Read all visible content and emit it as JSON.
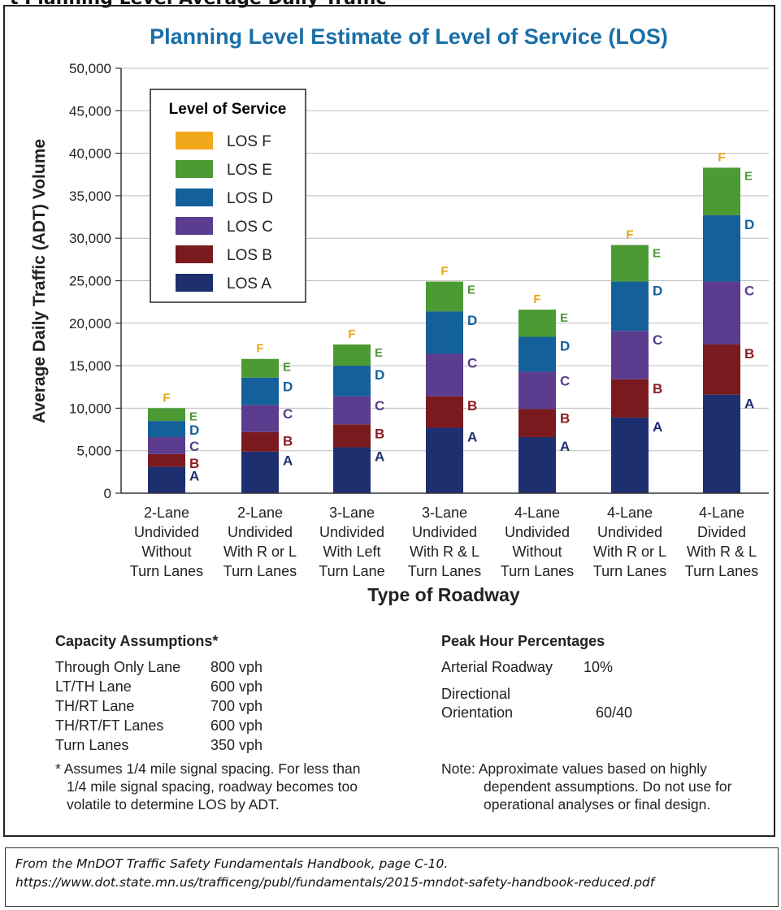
{
  "chart_data": {
    "type": "bar",
    "stacked": true,
    "title": "Planning Level Estimate of Level of Service (LOS)",
    "xlabel": "Type of Roadway",
    "ylabel": "Average Daily Traffic (ADT) Volume",
    "ylim": [
      0,
      50000
    ],
    "yticks": [
      0,
      5000,
      10000,
      15000,
      20000,
      25000,
      30000,
      35000,
      40000,
      45000,
      50000
    ],
    "ytick_labels": [
      "0",
      "5,000",
      "10,000",
      "15,000",
      "20,000",
      "25,000",
      "30,000",
      "35,000",
      "40,000",
      "45,000",
      "50,000"
    ],
    "grid": true,
    "categories": [
      [
        "2-Lane",
        "Undivided",
        "Without",
        "Turn Lanes"
      ],
      [
        "2-Lane",
        "Undivided",
        "With R or L",
        "Turn Lanes"
      ],
      [
        "3-Lane",
        "Undivided",
        "With Left",
        "Turn Lane"
      ],
      [
        "3-Lane",
        "Undivided",
        "With R & L",
        "Turn Lanes"
      ],
      [
        "4-Lane",
        "Undivided",
        "Without",
        "Turn Lanes"
      ],
      [
        "4-Lane",
        "Undivided",
        "With R or L",
        "Turn Lanes"
      ],
      [
        "4-Lane",
        "Divided",
        "With R & L",
        "Turn Lanes"
      ]
    ],
    "legend": {
      "title": "Level of Service",
      "position": "top-left",
      "order": [
        "LOS F",
        "LOS E",
        "LOS D",
        "LOS C",
        "LOS B",
        "LOS A"
      ]
    },
    "series": [
      {
        "name": "LOS A",
        "letter": "A",
        "color": "#1d2f6f",
        "label_color": "#1d2f6f",
        "top_values": [
          3100,
          4900,
          5400,
          7700,
          6600,
          8900,
          11600
        ]
      },
      {
        "name": "LOS B",
        "letter": "B",
        "color": "#7a1a1e",
        "label_color": "#8e1c22",
        "top_values": [
          4600,
          7200,
          8100,
          11400,
          9900,
          13400,
          17500
        ]
      },
      {
        "name": "LOS C",
        "letter": "C",
        "color": "#5b3c8e",
        "label_color": "#5b3c8e",
        "top_values": [
          6600,
          10400,
          11400,
          16400,
          14300,
          19100,
          24900
        ]
      },
      {
        "name": "LOS D",
        "letter": "D",
        "color": "#14609a",
        "label_color": "#14609a",
        "top_values": [
          8500,
          13600,
          15000,
          21400,
          18400,
          24900,
          32700
        ]
      },
      {
        "name": "LOS E",
        "letter": "E",
        "color": "#4c9a34",
        "label_color": "#4c9a34",
        "top_values": [
          10000,
          15800,
          17500,
          24900,
          21600,
          29200,
          38300
        ]
      },
      {
        "name": "LOS F",
        "letter": "F",
        "color": "#f2a81d",
        "label_color": "#e9a417",
        "top_values": [
          null,
          null,
          null,
          null,
          null,
          null,
          null
        ]
      }
    ],
    "text_color": "#222222",
    "title_color": "#1a6fa8"
  },
  "capacity": {
    "heading": "Capacity Assumptions*",
    "rows": [
      {
        "label": "Through Only Lane",
        "value": "800 vph"
      },
      {
        "label": "LT/TH Lane",
        "value": "600 vph"
      },
      {
        "label": "TH/RT Lane",
        "value": "700 vph"
      },
      {
        "label": "TH/RT/FT Lanes",
        "value": "600 vph"
      },
      {
        "label": "Turn Lanes",
        "value": "350 vph"
      }
    ],
    "footnote": [
      "* Assumes 1/4 mile signal spacing. For less than",
      "1/4 mile signal spacing, roadway becomes too",
      "volatile to determine LOS by ADT."
    ]
  },
  "peak": {
    "heading": "Peak Hour Percentages",
    "arterial_label": "Arterial Roadway",
    "arterial_value": "10%",
    "directional_label_1": "Directional",
    "directional_label_2": "Orientation",
    "directional_value": "60/40",
    "note": [
      "Note: Approximate values based on highly",
      "dependent assumptions. Do not use for",
      "operational analyses or final design."
    ]
  },
  "source": {
    "line1": "From the MnDOT Traffic Safety Fundamentals Handbook, page C-10.",
    "line2": "https://www.dot.state.mn.us/trafficeng/publ/fundamentals/2015-mndot-safety-handbook-reduced.pdf"
  },
  "top_strip_text": "t Planning Level Average Daily Traffic"
}
